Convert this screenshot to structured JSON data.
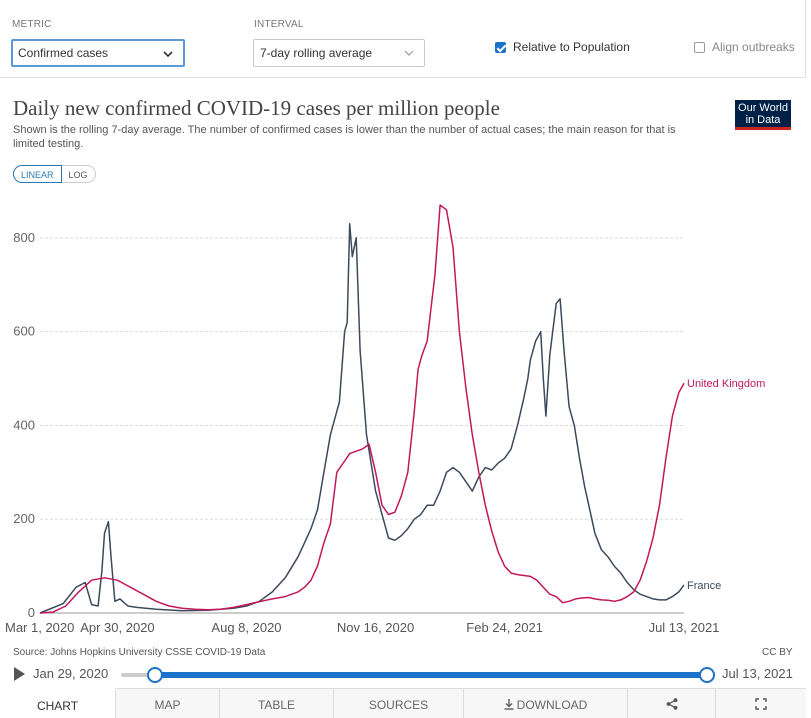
{
  "controls": {
    "metric_label": "METRIC",
    "metric_value": "Confirmed cases",
    "interval_label": "INTERVAL",
    "interval_value": "7-day rolling average",
    "relative_label": "Relative to Population",
    "relative_checked": true,
    "align_label": "Align outbreaks",
    "align_checked": false
  },
  "chart_header": {
    "title": "Daily new confirmed COVID-19 cases per million people",
    "subtitle": "Shown is the rolling 7-day average. The number of confirmed cases is lower than the number of actual cases; the main reason for that is limited testing.",
    "logo_line1": "Our World",
    "logo_line2": "in Data",
    "scale_linear": "LINEAR",
    "scale_log": "LOG"
  },
  "footer": {
    "source": "Source: Johns Hopkins University CSSE COVID-19 Data",
    "license": "CC BY"
  },
  "timeline": {
    "start_date": "Jan 29, 2020",
    "end_date": "Jul 13, 2021"
  },
  "tabs": [
    {
      "label": "CHART"
    },
    {
      "label": "MAP"
    },
    {
      "label": "TABLE"
    },
    {
      "label": "SOURCES"
    },
    {
      "label": "DOWNLOAD"
    }
  ],
  "colors": {
    "france": "#3c4a5c",
    "united_kingdom": "#c2185b",
    "accent": "#1a73c8"
  },
  "icons": {
    "share": "share-icon",
    "fullscreen": "fullscreen-icon",
    "download": "download-icon",
    "play": "play-icon"
  },
  "chart_data": {
    "type": "line",
    "title": "Daily new confirmed COVID-19 cases per million people",
    "x_tick_labels": [
      "Mar 1, 2020",
      "Apr 30, 2020",
      "Aug 8, 2020",
      "Nov 16, 2020",
      "Feb 24, 2021",
      "Jul 13, 2021"
    ],
    "x_ticks_days": [
      0,
      60,
      160,
      260,
      360,
      499
    ],
    "y_ticks": [
      0,
      200,
      400,
      600,
      800
    ],
    "xlim_days": [
      0,
      499
    ],
    "ylim": [
      0,
      900
    ],
    "grid": true,
    "series": [
      {
        "name": "France",
        "x": [
          0,
          18,
          28,
          35,
          40,
          45,
          48,
          50,
          53,
          55,
          58,
          62,
          68,
          75,
          90,
          110,
          130,
          150,
          160,
          170,
          180,
          190,
          200,
          205,
          210,
          215,
          220,
          225,
          230,
          232,
          236,
          238,
          240,
          242,
          245,
          248,
          253,
          260,
          270,
          275,
          280,
          285,
          290,
          295,
          300,
          305,
          310,
          315,
          320,
          325,
          330,
          335,
          340,
          345,
          350,
          355,
          360,
          365,
          370,
          375,
          378,
          380,
          382,
          384,
          386,
          388,
          390,
          392,
          395,
          400,
          403,
          406,
          410,
          414,
          418,
          422,
          426,
          430,
          435,
          440,
          445,
          450,
          455,
          460,
          465,
          470,
          475,
          480,
          485,
          490,
          495,
          499
        ],
        "y": [
          0,
          20,
          55,
          65,
          18,
          15,
          90,
          170,
          195,
          120,
          25,
          30,
          15,
          12,
          8,
          5,
          6,
          10,
          15,
          25,
          45,
          75,
          120,
          150,
          180,
          220,
          300,
          380,
          430,
          450,
          600,
          620,
          830,
          760,
          800,
          560,
          380,
          260,
          160,
          155,
          165,
          180,
          200,
          210,
          230,
          230,
          260,
          300,
          310,
          300,
          280,
          260,
          290,
          310,
          305,
          320,
          330,
          350,
          400,
          460,
          500,
          540,
          560,
          580,
          590,
          600,
          500,
          420,
          550,
          660,
          670,
          560,
          440,
          400,
          330,
          270,
          220,
          170,
          135,
          120,
          100,
          85,
          65,
          50,
          40,
          35,
          30,
          28,
          28,
          35,
          45,
          60
        ]
      },
      {
        "name": "United Kingdom",
        "x": [
          0,
          10,
          20,
          30,
          40,
          50,
          60,
          70,
          80,
          90,
          100,
          110,
          120,
          130,
          140,
          150,
          160,
          170,
          180,
          190,
          200,
          205,
          210,
          215,
          220,
          225,
          230,
          235,
          240,
          245,
          250,
          255,
          260,
          265,
          270,
          275,
          280,
          285,
          290,
          293,
          296,
          300,
          303,
          306,
          310,
          315,
          320,
          325,
          330,
          335,
          340,
          345,
          350,
          355,
          360,
          365,
          370,
          375,
          380,
          385,
          390,
          395,
          400,
          405,
          410,
          415,
          420,
          425,
          430,
          435,
          440,
          445,
          450,
          455,
          460,
          465,
          470,
          475,
          480,
          485,
          490,
          495,
          499
        ],
        "y": [
          0,
          2,
          15,
          45,
          70,
          75,
          70,
          55,
          40,
          25,
          15,
          10,
          8,
          7,
          8,
          12,
          18,
          24,
          30,
          35,
          45,
          55,
          70,
          100,
          150,
          190,
          300,
          320,
          340,
          345,
          350,
          360,
          300,
          230,
          210,
          215,
          250,
          300,
          430,
          520,
          550,
          580,
          650,
          720,
          870,
          860,
          780,
          600,
          480,
          380,
          300,
          230,
          175,
          130,
          100,
          85,
          82,
          80,
          78,
          70,
          55,
          40,
          35,
          22,
          25,
          30,
          32,
          33,
          30,
          28,
          27,
          25,
          28,
          35,
          45,
          70,
          110,
          160,
          230,
          330,
          420,
          470,
          490
        ]
      }
    ]
  }
}
